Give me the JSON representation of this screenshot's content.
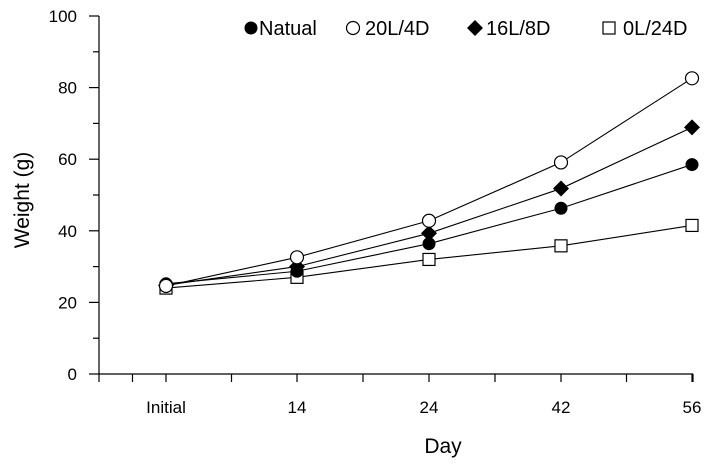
{
  "chart_data": {
    "type": "line",
    "categories": [
      "Initial",
      "14",
      "24",
      "42",
      "56"
    ],
    "xlabel": "Day",
    "ylabel": "Weight (g)",
    "ylim": [
      0,
      100
    ],
    "yticks": [
      "0",
      "20",
      "40",
      "60",
      "80",
      "100"
    ],
    "grid": false,
    "legend_position": "top",
    "series": [
      {
        "name": "Natual",
        "marker": "filled-circle",
        "values": [
          25.2,
          28.7,
          36.4,
          46.3,
          58.5
        ]
      },
      {
        "name": "20L/4D",
        "marker": "open-circle",
        "values": [
          24.6,
          32.6,
          42.8,
          59.1,
          82.6
        ]
      },
      {
        "name": "16L/8D",
        "marker": "filled-diamond",
        "values": [
          24.8,
          30.0,
          39.3,
          51.8,
          68.9
        ]
      },
      {
        "name": "0L/24D",
        "marker": "open-square",
        "values": [
          24.0,
          27.0,
          32.0,
          35.8,
          41.5
        ]
      }
    ]
  }
}
